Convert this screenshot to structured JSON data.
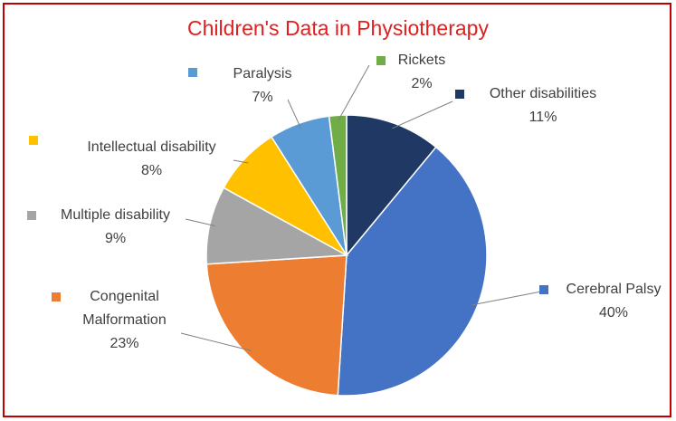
{
  "chart_data": {
    "type": "pie",
    "title": "Children's Data in Physiotherapy",
    "categories": [
      "Other disabilities",
      "Cerebral Palsy",
      "Congenital Malformation",
      "Multiple disability",
      "Intellectual disability",
      "Paralysis",
      "Rickets"
    ],
    "values": [
      11,
      40,
      23,
      9,
      8,
      7,
      2
    ],
    "value_labels": [
      "11%",
      "40%",
      "23%",
      "9%",
      "8%",
      "7%",
      "2%"
    ],
    "colors": [
      "#203864",
      "#4472c4",
      "#ed7d31",
      "#a5a5a5",
      "#ffc000",
      "#5b9bd5",
      "#70ad47"
    ]
  }
}
